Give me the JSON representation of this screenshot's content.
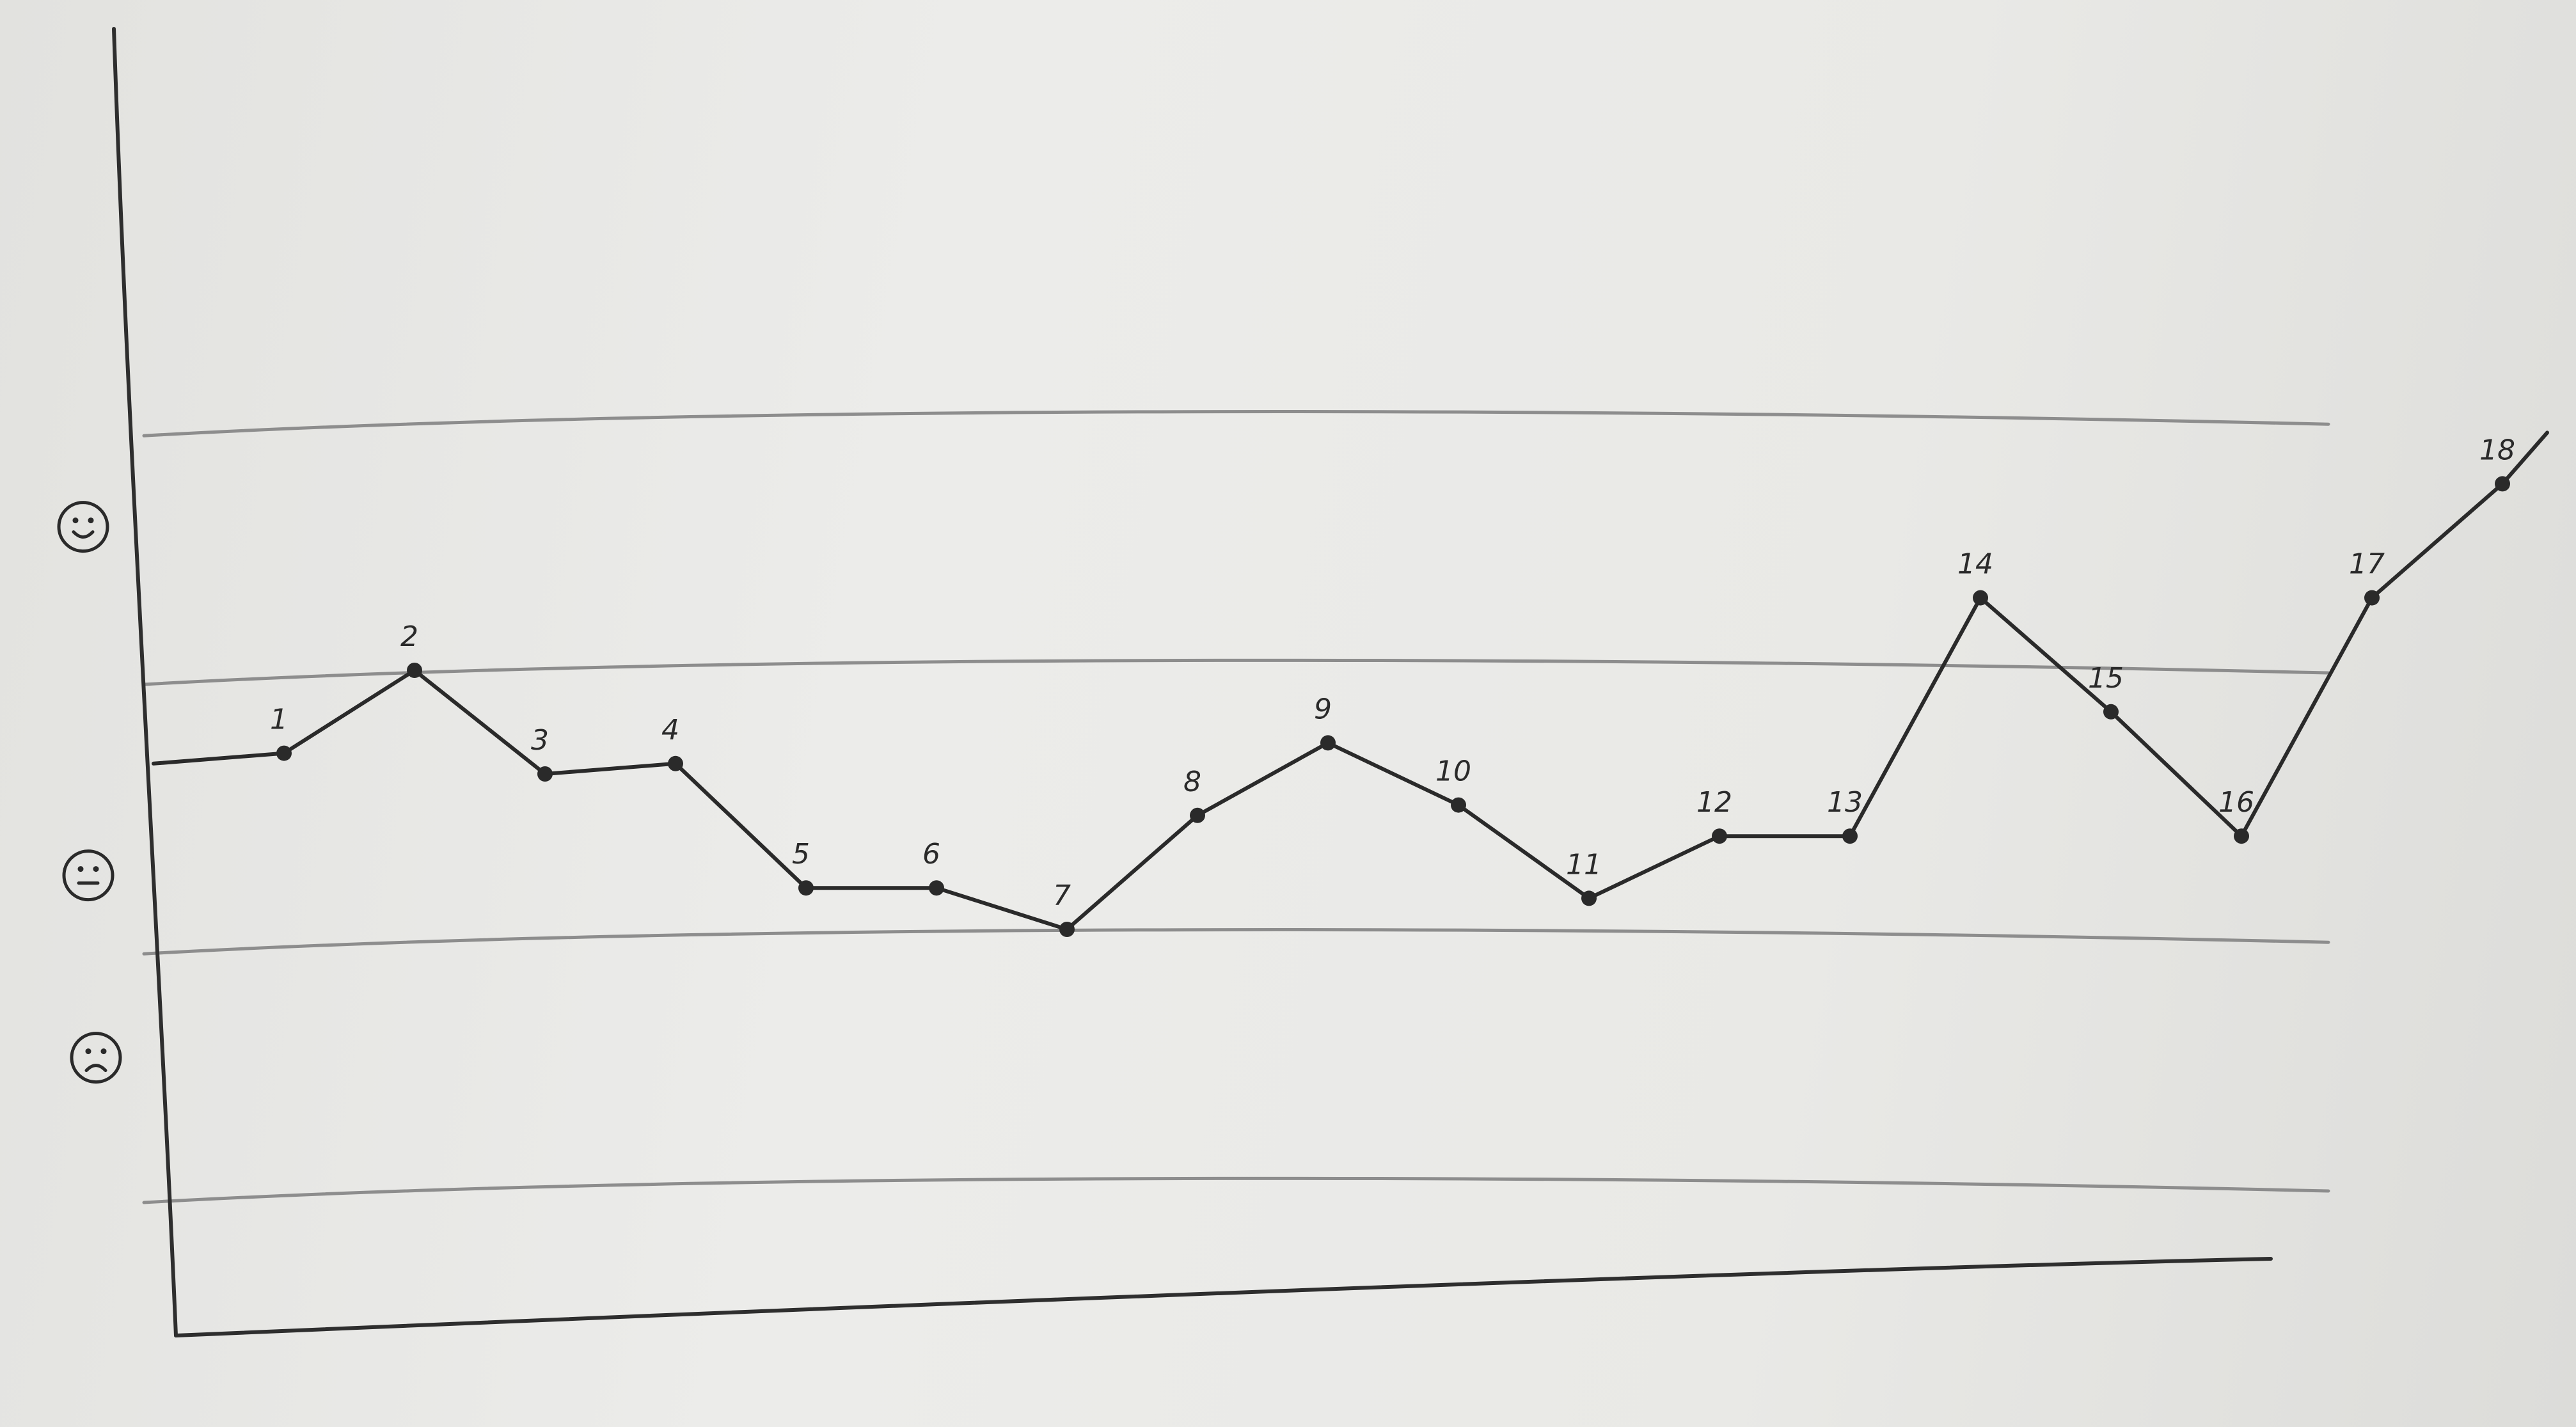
{
  "chart_data": {
    "type": "line",
    "title": "",
    "xlabel": "",
    "ylabel": "",
    "y_axis_icons": [
      "happy-face-icon",
      "neutral-face-icon",
      "sad-face-icon"
    ],
    "x": [
      1,
      2,
      3,
      4,
      5,
      6,
      7,
      8,
      9,
      10,
      11,
      12,
      13,
      14,
      15,
      16,
      17,
      18
    ],
    "point_labels": [
      "1",
      "2",
      "3",
      "4",
      "5",
      "6",
      "7",
      "8",
      "9",
      "10",
      "11",
      "12",
      "13",
      "14",
      "15",
      "16",
      "17",
      "18"
    ],
    "values": [
      5.2,
      6.0,
      5.0,
      5.1,
      3.9,
      3.9,
      3.5,
      4.6,
      5.3,
      4.7,
      3.8,
      4.4,
      4.4,
      6.7,
      5.6,
      4.4,
      6.7,
      7.8
    ],
    "start_value": 5.1,
    "ylim": [
      0,
      10
    ],
    "mood_zone_boundaries": [
      1.0,
      3.4,
      6.0,
      8.4
    ],
    "grid": false,
    "legend": "none",
    "colors": {
      "ink": "#2a2a2a",
      "pencil": "#8d8d8d",
      "paper": "#ececea"
    }
  }
}
